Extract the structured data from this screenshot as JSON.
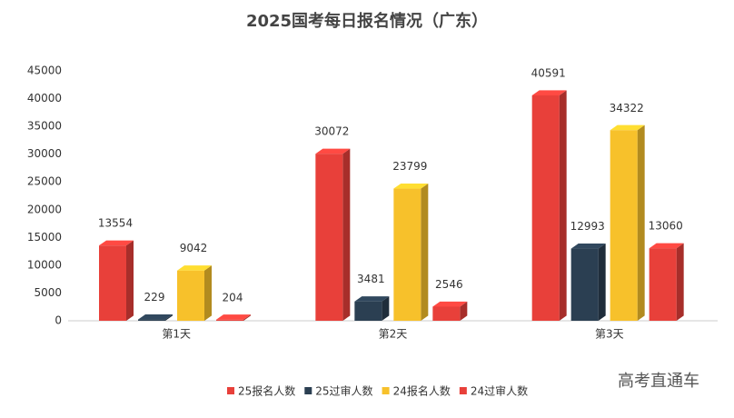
{
  "chart_data": {
    "type": "bar3d",
    "title": "2025国考每日报名情况（广东）",
    "categories": [
      "第1天",
      "第2天",
      "第3天"
    ],
    "series": [
      {
        "name": "25报名人数",
        "color": "#e8403a",
        "values": [
          13554,
          30072,
          40591
        ]
      },
      {
        "name": "25过审人数",
        "color": "#2b3f52",
        "values": [
          229,
          3481,
          12993
        ]
      },
      {
        "name": "24报名人数",
        "color": "#f7c12b",
        "values": [
          9042,
          23799,
          34322
        ]
      },
      {
        "name": "24过审人数",
        "color": "#e8403a",
        "values": [
          204,
          2546,
          13060
        ]
      }
    ],
    "ylim": [
      0,
      45000
    ],
    "yticks": [
      0,
      5000,
      10000,
      15000,
      20000,
      25000,
      30000,
      35000,
      40000,
      45000
    ],
    "grid": false,
    "legend": "bottom"
  },
  "watermark": "高考直通车"
}
